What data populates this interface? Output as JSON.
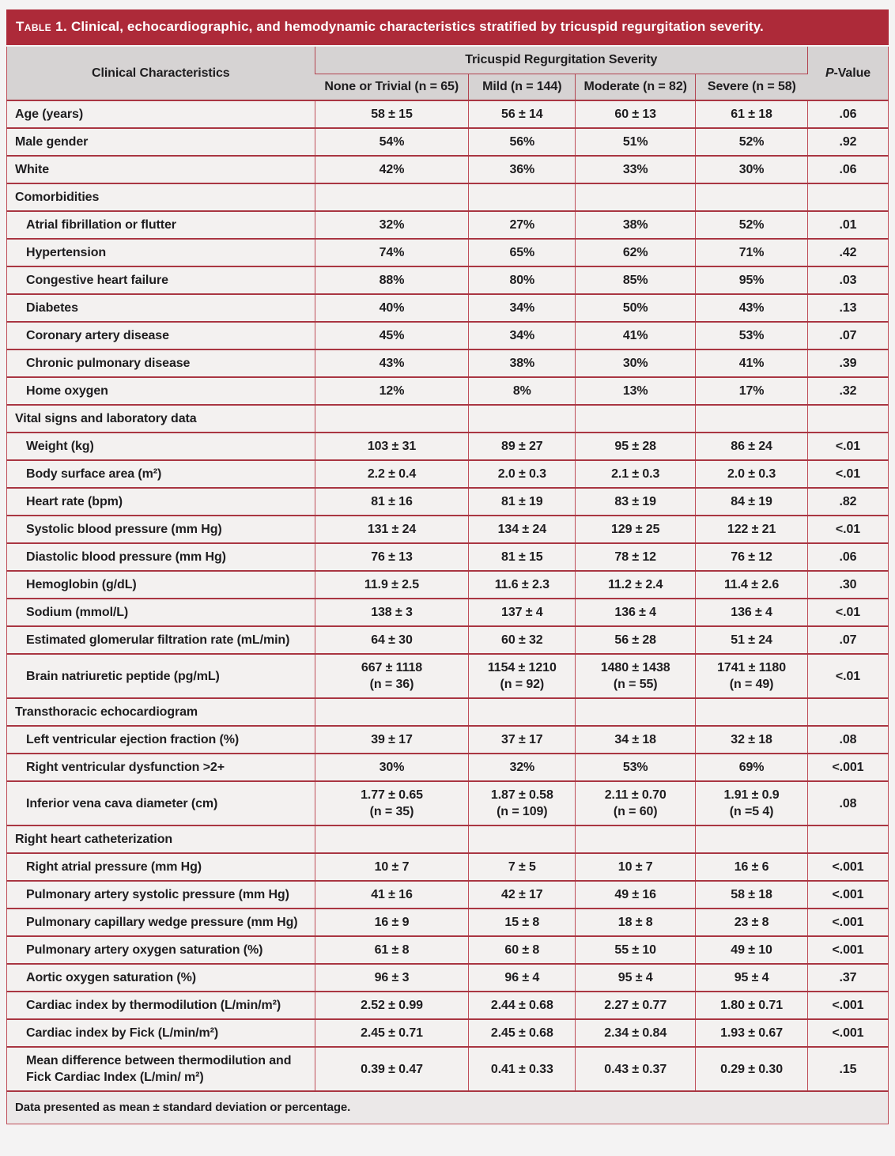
{
  "table": {
    "title_label": "Table 1.",
    "title_text": " Clinical, echocardiographic, and hemodynamic characteristics stratified by tricuspid regurgitation severity.",
    "header": {
      "characteristics": "Clinical Characteristics",
      "span": "Tricuspid Regurgitation Severity",
      "subcols": [
        "None or Trivial (n = 65)",
        "Mild (n = 144)",
        "Moderate (n = 82)",
        "Severe (n = 58)"
      ],
      "pvalue_p": "P",
      "pvalue_rest": "-Value"
    },
    "rows": [
      {
        "label": "Age (years)",
        "section": false,
        "indent": false,
        "values": [
          "58 ± 15",
          "56 ± 14",
          "60 ± 13",
          "61 ± 18"
        ],
        "p": ".06"
      },
      {
        "label": "Male gender",
        "section": false,
        "indent": false,
        "values": [
          "54%",
          "56%",
          "51%",
          "52%"
        ],
        "p": ".92"
      },
      {
        "label": "White",
        "section": false,
        "indent": false,
        "values": [
          "42%",
          "36%",
          "33%",
          "30%"
        ],
        "p": ".06"
      },
      {
        "label": "Comorbidities",
        "section": true,
        "indent": false,
        "values": [
          "",
          "",
          "",
          ""
        ],
        "p": ""
      },
      {
        "label": "Atrial fibrillation or flutter",
        "section": false,
        "indent": true,
        "values": [
          "32%",
          "27%",
          "38%",
          "52%"
        ],
        "p": ".01"
      },
      {
        "label": "Hypertension",
        "section": false,
        "indent": true,
        "values": [
          "74%",
          "65%",
          "62%",
          "71%"
        ],
        "p": ".42"
      },
      {
        "label": "Congestive heart failure",
        "section": false,
        "indent": true,
        "values": [
          "88%",
          "80%",
          "85%",
          "95%"
        ],
        "p": ".03"
      },
      {
        "label": "Diabetes",
        "section": false,
        "indent": true,
        "values": [
          "40%",
          "34%",
          "50%",
          "43%"
        ],
        "p": ".13"
      },
      {
        "label": "Coronary artery disease",
        "section": false,
        "indent": true,
        "values": [
          "45%",
          "34%",
          "41%",
          "53%"
        ],
        "p": ".07"
      },
      {
        "label": "Chronic pulmonary disease",
        "section": false,
        "indent": true,
        "values": [
          "43%",
          "38%",
          "30%",
          "41%"
        ],
        "p": ".39"
      },
      {
        "label": "Home oxygen",
        "section": false,
        "indent": true,
        "values": [
          "12%",
          "8%",
          "13%",
          "17%"
        ],
        "p": ".32"
      },
      {
        "label": "Vital signs and laboratory data",
        "section": true,
        "indent": false,
        "values": [
          "",
          "",
          "",
          ""
        ],
        "p": ""
      },
      {
        "label": "Weight (kg)",
        "section": false,
        "indent": true,
        "values": [
          "103 ± 31",
          "89 ± 27",
          "95 ± 28",
          "86 ± 24"
        ],
        "p": "<.01"
      },
      {
        "label": "Body surface area (m²)",
        "section": false,
        "indent": true,
        "values": [
          "2.2 ± 0.4",
          "2.0 ± 0.3",
          "2.1 ± 0.3",
          "2.0 ± 0.3"
        ],
        "p": "<.01"
      },
      {
        "label": "Heart rate (bpm)",
        "section": false,
        "indent": true,
        "values": [
          "81 ± 16",
          "81 ± 19",
          "83 ± 19",
          "84 ± 19"
        ],
        "p": ".82"
      },
      {
        "label": "Systolic blood pressure (mm Hg)",
        "section": false,
        "indent": true,
        "values": [
          "131 ± 24",
          "134 ± 24",
          "129 ± 25",
          "122 ± 21"
        ],
        "p": "<.01"
      },
      {
        "label": "Diastolic blood pressure (mm Hg)",
        "section": false,
        "indent": true,
        "values": [
          "76 ± 13",
          "81 ± 15",
          "78 ± 12",
          "76 ± 12"
        ],
        "p": ".06"
      },
      {
        "label": "Hemoglobin (g/dL)",
        "section": false,
        "indent": true,
        "values": [
          "11.9 ± 2.5",
          "11.6 ± 2.3",
          "11.2 ± 2.4",
          "11.4 ± 2.6"
        ],
        "p": ".30"
      },
      {
        "label": "Sodium (mmol/L)",
        "section": false,
        "indent": true,
        "values": [
          "138 ± 3",
          "137 ± 4",
          "136 ± 4",
          "136 ± 4"
        ],
        "p": "<.01"
      },
      {
        "label": "Estimated glomerular filtration rate (mL/min)",
        "section": false,
        "indent": true,
        "values": [
          "64 ± 30",
          "60 ± 32",
          "56 ± 28",
          "51 ± 24"
        ],
        "p": ".07"
      },
      {
        "label": "Brain natriuretic peptide (pg/mL)",
        "section": false,
        "indent": true,
        "values": [
          "667 ± 1118\n(n = 36)",
          "1154 ± 1210\n(n = 92)",
          "1480 ± 1438\n(n = 55)",
          "1741 ± 1180\n(n = 49)"
        ],
        "p": "<.01"
      },
      {
        "label": "Transthoracic echocardiogram",
        "section": true,
        "indent": false,
        "values": [
          "",
          "",
          "",
          ""
        ],
        "p": ""
      },
      {
        "label": "Left ventricular ejection fraction (%)",
        "section": false,
        "indent": true,
        "values": [
          "39 ± 17",
          "37 ± 17",
          "34 ± 18",
          "32 ± 18"
        ],
        "p": ".08"
      },
      {
        "label": "Right ventricular dysfunction >2+",
        "section": false,
        "indent": true,
        "values": [
          "30%",
          "32%",
          "53%",
          "69%"
        ],
        "p": "<.001"
      },
      {
        "label": "Inferior vena cava diameter (cm)",
        "section": false,
        "indent": true,
        "values": [
          "1.77 ± 0.65\n(n = 35)",
          "1.87 ± 0.58\n(n = 109)",
          "2.11 ± 0.70\n(n = 60)",
          "1.91 ± 0.9\n(n =5 4)"
        ],
        "p": ".08"
      },
      {
        "label": "Right heart catheterization",
        "section": true,
        "indent": false,
        "values": [
          "",
          "",
          "",
          ""
        ],
        "p": ""
      },
      {
        "label": "Right atrial pressure (mm Hg)",
        "section": false,
        "indent": true,
        "values": [
          "10 ± 7",
          "7 ± 5",
          "10 ± 7",
          "16 ± 6"
        ],
        "p": "<.001"
      },
      {
        "label": "Pulmonary artery systolic pressure (mm Hg)",
        "section": false,
        "indent": true,
        "values": [
          "41 ± 16",
          "42 ± 17",
          "49 ± 16",
          "58 ± 18"
        ],
        "p": "<.001"
      },
      {
        "label": "Pulmonary capillary wedge pressure (mm Hg)",
        "section": false,
        "indent": true,
        "values": [
          "16 ± 9",
          "15 ± 8",
          "18 ± 8",
          "23 ± 8"
        ],
        "p": "<.001"
      },
      {
        "label": "Pulmonary artery oxygen saturation (%)",
        "section": false,
        "indent": true,
        "values": [
          "61 ± 8",
          "60 ± 8",
          "55 ± 10",
          "49 ± 10"
        ],
        "p": "<.001"
      },
      {
        "label": "Aortic oxygen saturation (%)",
        "section": false,
        "indent": true,
        "values": [
          "96 ± 3",
          "96 ± 4",
          "95 ± 4",
          "95 ± 4"
        ],
        "p": ".37"
      },
      {
        "label": "Cardiac index by thermodilution (L/min/m²)",
        "section": false,
        "indent": true,
        "values": [
          "2.52 ± 0.99",
          "2.44 ± 0.68",
          "2.27 ± 0.77",
          "1.80 ± 0.71"
        ],
        "p": "<.001"
      },
      {
        "label": "Cardiac index by Fick (L/min/m²)",
        "section": false,
        "indent": true,
        "values": [
          "2.45 ± 0.71",
          "2.45 ± 0.68",
          "2.34 ± 0.84",
          "1.93 ± 0.67"
        ],
        "p": "<.001"
      },
      {
        "label": "Mean difference between thermodilution and Fick Cardiac Index (L/min/ m²)",
        "section": false,
        "indent": true,
        "values": [
          "0.39 ± 0.47",
          "0.41 ± 0.33",
          "0.43 ± 0.37",
          "0.29 ± 0.30"
        ],
        "p": ".15"
      }
    ],
    "footnote": "Data presented as mean ± standard deviation or percentage."
  },
  "colors": {
    "title_bar_red": "#ad2a39",
    "header_gray": "#d6d3d3",
    "row_background": "#f3f1f0",
    "border_red_horizontal": "#a93642",
    "border_red_vertical": "#bf4e59",
    "footnote_background": "#ebe8e8",
    "text": "#1e1d1f"
  }
}
